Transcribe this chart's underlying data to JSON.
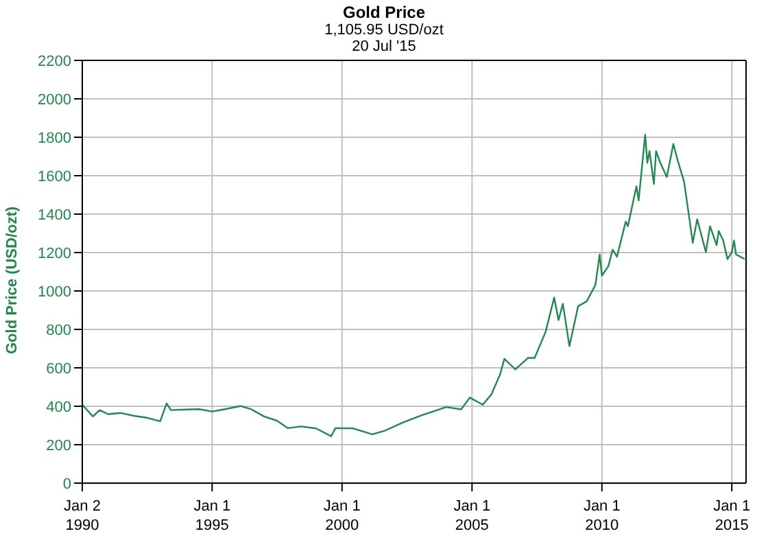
{
  "chart_data": {
    "type": "line",
    "title": "Gold Price",
    "subtitle": "1,105.95 USD/ozt",
    "annotations": [
      "20 Jul '15"
    ],
    "ylabel": "Gold Price (USD/ozt)",
    "x": [
      "1990-01-02",
      "1990-06",
      "1990-09",
      "1991-01",
      "1991-07",
      "1992-01",
      "1992-07",
      "1993-01",
      "1993-04",
      "1993-06",
      "1994-01",
      "1994-07",
      "1995-01",
      "1995-07",
      "1996-02",
      "1996-07",
      "1997-01",
      "1997-07",
      "1997-12",
      "1998-06",
      "1999-01",
      "1999-08",
      "1999-10",
      "2000-06",
      "2001-03",
      "2001-09",
      "2002-05",
      "2003-02",
      "2003-09",
      "2004-01",
      "2004-08",
      "2004-12",
      "2005-06",
      "2005-10",
      "2006-02",
      "2006-04",
      "2006-09",
      "2007-03",
      "2007-06",
      "2007-11",
      "2008-03",
      "2008-05",
      "2008-07",
      "2008-10",
      "2009-02",
      "2009-06",
      "2009-10",
      "2009-12",
      "2010-01",
      "2010-04",
      "2010-06",
      "2010-08",
      "2010-12",
      "2011-01",
      "2011-05",
      "2011-06",
      "2011-09",
      "2011-10",
      "2011-11",
      "2012-01",
      "2012-02",
      "2012-04",
      "2012-07",
      "2012-10",
      "2012-12",
      "2013-03",
      "2013-05",
      "2013-07",
      "2013-09",
      "2013-11",
      "2014-01",
      "2014-03",
      "2014-06",
      "2014-07",
      "2014-09",
      "2014-11",
      "2015-01",
      "2015-02",
      "2015-03",
      "2015-05",
      "2015-07"
    ],
    "series": [
      {
        "color": "#1f8a4c",
        "values": [
          408,
          347,
          380,
          359,
          365,
          350,
          340,
          322,
          415,
          380,
          383,
          385,
          373,
          385,
          401,
          385,
          347,
          325,
          286,
          295,
          285,
          244,
          286,
          285,
          254,
          274,
          315,
          354,
          380,
          396,
          384,
          445,
          408,
          462,
          567,
          647,
          592,
          652,
          652,
          787,
          966,
          848,
          933,
          713,
          921,
          946,
          1031,
          1190,
          1080,
          1129,
          1215,
          1178,
          1361,
          1337,
          1545,
          1471,
          1813,
          1667,
          1728,
          1557,
          1728,
          1667,
          1593,
          1765,
          1679,
          1569,
          1410,
          1251,
          1373,
          1288,
          1202,
          1337,
          1239,
          1312,
          1263,
          1166,
          1202,
          1263,
          1190,
          1178,
          1166
        ]
      }
    ],
    "xlim": [
      "1990-01-02",
      "2015-07-20"
    ],
    "xticks": [
      {
        "value": "1990-01-02",
        "label": "Jan 2 1990"
      },
      {
        "value": "1995-01-01",
        "label": "Jan 1 1995"
      },
      {
        "value": "2000-01-01",
        "label": "Jan 1 2000"
      },
      {
        "value": "2005-01-01",
        "label": "Jan 1 2005"
      },
      {
        "value": "2010-01-01",
        "label": "Jan 1 2010"
      },
      {
        "value": "2015-01-01",
        "label": "Jan 1 2015"
      }
    ],
    "ylim": [
      0,
      2200
    ],
    "yticks": [
      0,
      200,
      400,
      600,
      800,
      1000,
      1200,
      1400,
      1600,
      1800,
      2000,
      2200
    ],
    "grid": true,
    "marker": "none",
    "line_style": "solid"
  }
}
